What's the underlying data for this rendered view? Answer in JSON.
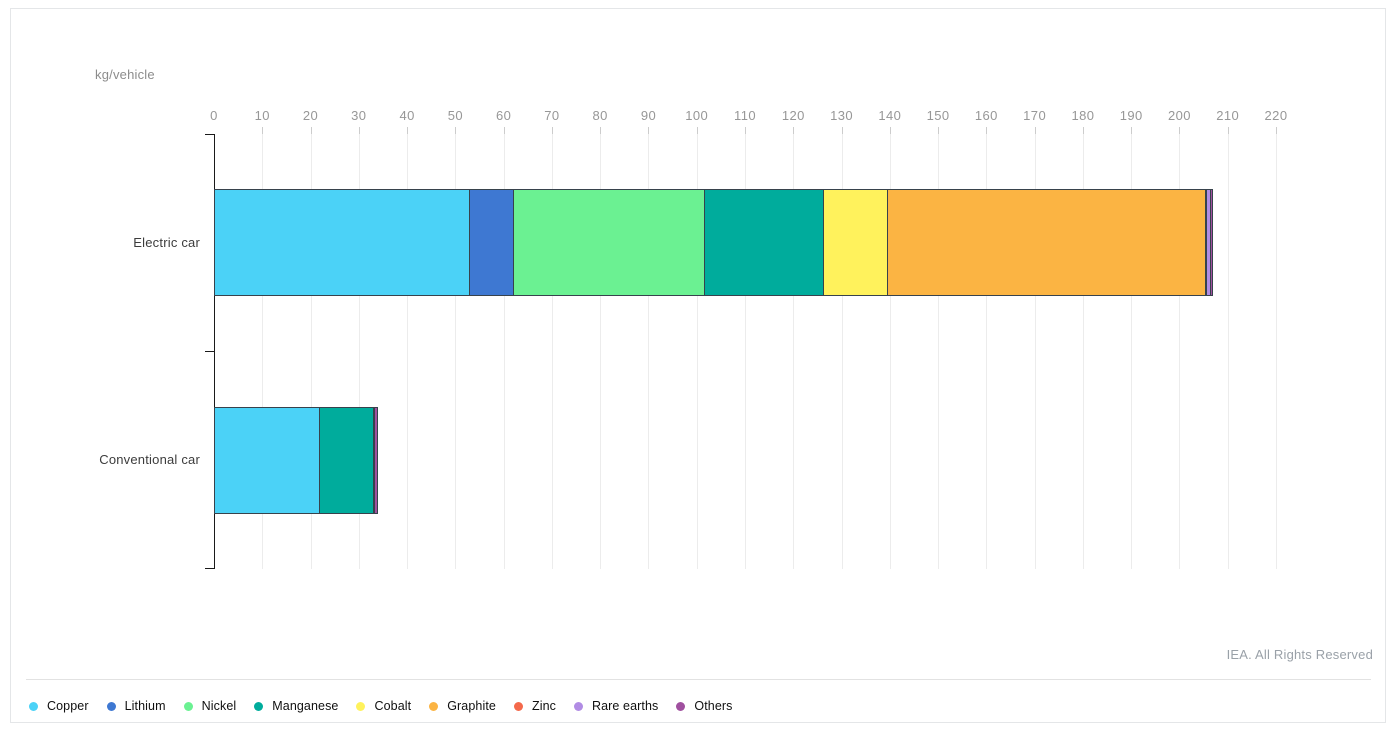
{
  "chart_data": {
    "type": "bar",
    "orientation": "horizontal-stacked",
    "unit_label": "kg/vehicle",
    "categories": [
      "Electric car",
      "Conventional car"
    ],
    "minerals": [
      {
        "name": "Copper",
        "color": "#4bd2f7",
        "values": [
          53.2,
          22.3
        ]
      },
      {
        "name": "Lithium",
        "color": "#3e78d2",
        "values": [
          8.9,
          0
        ]
      },
      {
        "name": "Nickel",
        "color": "#6bf192",
        "values": [
          39.9,
          0
        ]
      },
      {
        "name": "Manganese",
        "color": "#00ac9c",
        "values": [
          24.5,
          11.2
        ]
      },
      {
        "name": "Cobalt",
        "color": "#fff25c",
        "values": [
          13.3,
          0
        ]
      },
      {
        "name": "Graphite",
        "color": "#fbb443",
        "values": [
          66.3,
          0
        ]
      },
      {
        "name": "Zinc",
        "color": "#f4694b",
        "values": [
          0.1,
          0.1
        ]
      },
      {
        "name": "Rare earths",
        "color": "#b18ce4",
        "values": [
          0.5,
          0
        ]
      },
      {
        "name": "Others",
        "color": "#a0509f",
        "values": [
          0.3,
          0.3
        ]
      }
    ],
    "totals": [
      207.0,
      33.9
    ],
    "xlim": [
      0,
      220
    ],
    "ticks": [
      0,
      10,
      20,
      30,
      40,
      50,
      60,
      70,
      80,
      90,
      100,
      110,
      120,
      130,
      140,
      150,
      160,
      170,
      180,
      190,
      200,
      210,
      220
    ],
    "grid": true,
    "legend_position": "bottom",
    "attribution": "IEA. All Rights Reserved",
    "layout_colors": {
      "segment_border": "#37424c",
      "gridline": "#ececec",
      "tick": "#cccccc",
      "axis_line": "#1a1a1a",
      "tick_label": "#979797",
      "category_label": "#3c3c3c",
      "attribution_text": "#9aa1a8"
    }
  }
}
